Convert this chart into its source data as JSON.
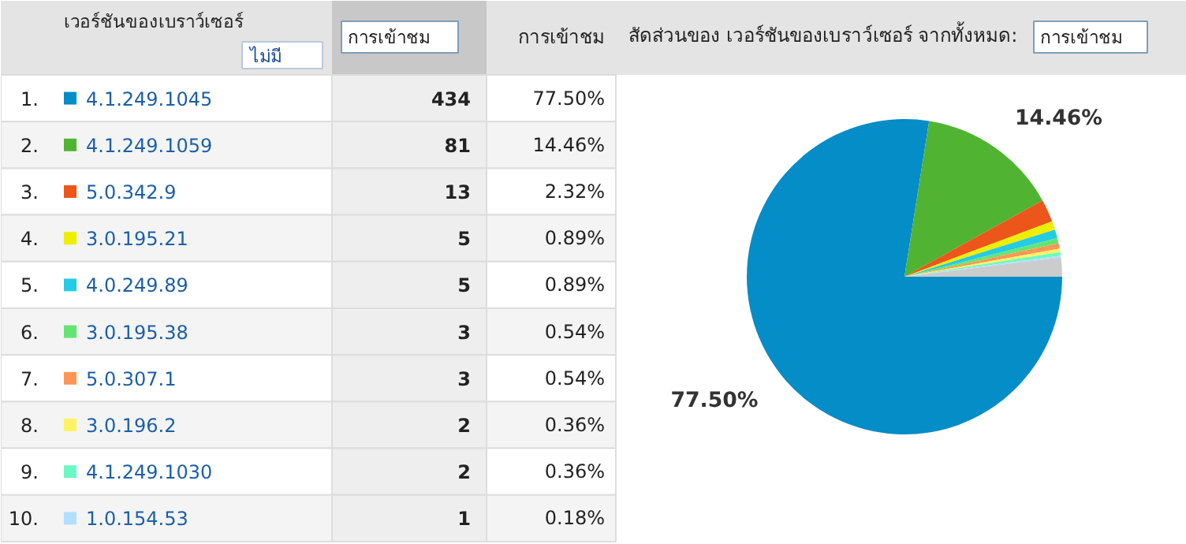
{
  "chart_data": {
    "type": "pie",
    "title": "สัดส่วนของ เวอร์ชันของเบราว์เซอร์ จากทั้งหมด:",
    "legend_title": "เวอร์ชันของเบราว์เซอร์",
    "categories": [
      "4.1.249.1045",
      "4.1.249.1059",
      "5.0.342.9",
      "3.0.195.21",
      "4.0.249.89",
      "3.0.195.38",
      "5.0.307.1",
      "3.0.196.2",
      "4.1.249.1030",
      "1.0.154.53",
      null
    ],
    "values": [
      77.5,
      14.46,
      2.32,
      0.89,
      0.89,
      0.54,
      0.54,
      0.36,
      0.36,
      0.18,
      1.96
    ],
    "colors": [
      "#058dc7",
      "#50b432",
      "#ed561b",
      "#edef00",
      "#24cbe5",
      "#64e572",
      "#ff9655",
      "#fff263",
      "#6af9c4",
      "#b2deff",
      "#cccccc"
    ],
    "value_labels": [
      "77.50%",
      "14.46%",
      "2.32%",
      "0.89%",
      "0.89%",
      "0.54%",
      "0.54%",
      "0.36%",
      "0.36%",
      "0.18%",
      null
    ],
    "legend": "left",
    "annotations": [
      "ไม่มี",
      "การเข้าชม",
      "การเข้าชม",
      "การเข้าชม",
      "1.",
      "434",
      "2.",
      "81",
      "3.",
      "13",
      "4.",
      "5",
      "5.",
      "5",
      "6.",
      "3",
      "7.",
      "3",
      "8.",
      "2",
      "9.",
      "2",
      "10.",
      "1"
    ]
  }
}
